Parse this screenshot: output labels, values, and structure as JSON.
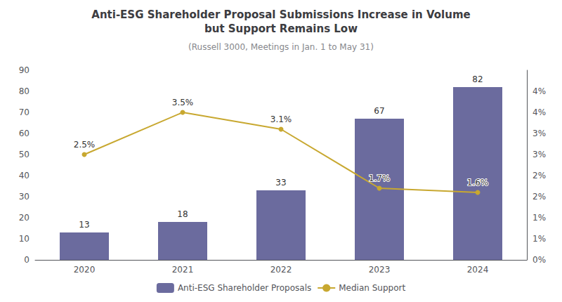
{
  "chart_data": {
    "type": "bar",
    "title": "Anti-ESG Shareholder Proposal Submissions Increase in Volume\nbut Support Remains Low",
    "subtitle": "(Russell 3000, Meetings in Jan. 1 to May 31)",
    "categories": [
      "2020",
      "2021",
      "2022",
      "2023",
      "2024"
    ],
    "series": [
      {
        "name": "Anti-ESG Shareholder Proposals",
        "type": "bar",
        "color": "#6b6b9e",
        "values": [
          13,
          18,
          33,
          67,
          82
        ],
        "data_labels": true
      },
      {
        "name": "Median Support",
        "type": "line",
        "color": "#c8a830",
        "axis": "y2",
        "marker": "circle",
        "line_style": "solid",
        "values": [
          2.5,
          3.5,
          3.1,
          1.7,
          1.6
        ],
        "value_labels": [
          "2.5%",
          "3.5%",
          "3.1%",
          "1.7%",
          "1.6%"
        ],
        "data_labels": true
      }
    ],
    "ylim": [
      0,
      90
    ],
    "yticks": [
      0,
      10,
      20,
      30,
      40,
      50,
      60,
      70,
      80,
      90
    ],
    "y2lim": [
      0,
      4.5
    ],
    "y2ticks": [
      {
        "value": 0.0,
        "label": "0%"
      },
      {
        "value": 0.5,
        "label": "1%"
      },
      {
        "value": 1.0,
        "label": "1%"
      },
      {
        "value": 1.5,
        "label": "2%"
      },
      {
        "value": 2.0,
        "label": "2%"
      },
      {
        "value": 2.5,
        "label": "3%"
      },
      {
        "value": 3.0,
        "label": "3%"
      },
      {
        "value": 3.5,
        "label": "4%"
      },
      {
        "value": 4.0,
        "label": "4%"
      }
    ],
    "grid": false,
    "legend": "bottom"
  }
}
